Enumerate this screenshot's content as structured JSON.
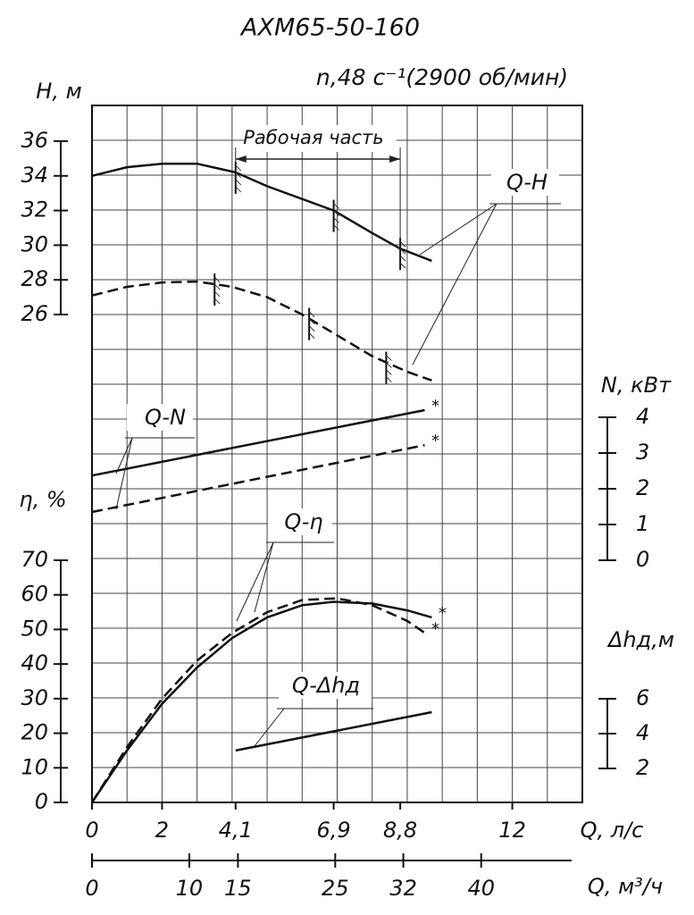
{
  "chart_data": {
    "type": "line",
    "title": "АХМ65-50-160",
    "subtitle": "n,48 с⁻¹(2900 об/мин)",
    "annotation": "Рабочая часть",
    "grid": true,
    "x_label": "Q, л/с",
    "xlim": [
      0,
      14
    ],
    "xticks": [
      0,
      2,
      {
        "value": 4.1,
        "label": "4,1"
      },
      {
        "value": 6.9,
        "label": "6,9"
      },
      {
        "value": 8.8,
        "label": "8,8"
      },
      12
    ],
    "x2_label": "Q, м³/ч",
    "x2lim": [
      0,
      50.4
    ],
    "x2ticks": [
      0,
      10,
      15,
      25,
      32,
      40
    ],
    "axes": [
      {
        "label": "H, м",
        "ylim": [
          26,
          36
        ],
        "yticks": [
          26,
          28,
          30,
          32,
          34,
          36
        ]
      },
      {
        "label": "N, кВт",
        "ylim": [
          0,
          4
        ],
        "yticks": [
          0,
          1,
          2,
          3,
          4
        ]
      },
      {
        "label": "η, %",
        "ylim": [
          0,
          70
        ],
        "yticks": [
          0,
          10,
          20,
          30,
          40,
          50,
          60,
          70
        ]
      },
      {
        "label": "Δhд,м",
        "ylim": [
          2,
          6
        ],
        "yticks": [
          2,
          4,
          6
        ]
      }
    ],
    "curves": [
      {
        "name": "Q-H",
        "axis": 0,
        "series": [
          {
            "dash": false,
            "x": [
              0,
              1,
              2,
              3,
              4.1,
              5,
              6.9,
              8,
              8.8,
              9.7
            ],
            "values": [
              34,
              34.5,
              34.7,
              34.7,
              34.2,
              33.4,
              32,
              30.7,
              29.8,
              29.1
            ],
            "work_range": [
              4.1,
              6.9,
              8.8
            ]
          },
          {
            "dash": true,
            "x": [
              0,
              1,
              2,
              3,
              4,
              5,
              6,
              7,
              8,
              9,
              9.7
            ],
            "values": [
              27.1,
              27.6,
              27.85,
              27.9,
              27.6,
              27,
              26,
              24.8,
              23.6,
              22.7,
              22.2
            ],
            "work_range": [
              3.5,
              6.2,
              8.4
            ]
          }
        ]
      },
      {
        "name": "Q-N",
        "axis": 1,
        "end_mark": "*",
        "series": [
          {
            "dash": false,
            "x": [
              0,
              9.5
            ],
            "values": [
              2.37,
              4.2
            ]
          },
          {
            "dash": true,
            "x": [
              0,
              9.5
            ],
            "values": [
              1.35,
              3.22
            ]
          }
        ]
      },
      {
        "name": "Q-η",
        "axis": 2,
        "end_mark": "*",
        "series": [
          {
            "dash": false,
            "x": [
              0,
              1,
              2,
              3,
              4,
              5,
              6,
              6.9,
              8,
              9,
              9.7
            ],
            "values": [
              0,
              15,
              28.5,
              39,
              47.5,
              53.5,
              57,
              58,
              57.5,
              55.5,
              53.5
            ]
          },
          {
            "dash": true,
            "x": [
              0,
              1,
              2,
              3,
              4,
              5,
              6,
              7,
              8,
              9,
              9.5
            ],
            "values": [
              0,
              16,
              30,
              41,
              49,
              55,
              58.5,
              59,
              57,
              52.5,
              49
            ]
          }
        ]
      },
      {
        "name": "Q-Δhд",
        "axis": 3,
        "series": [
          {
            "dash": false,
            "x": [
              4.1,
              9.7
            ],
            "values": [
              3.03,
              5.23
            ]
          }
        ]
      }
    ]
  }
}
